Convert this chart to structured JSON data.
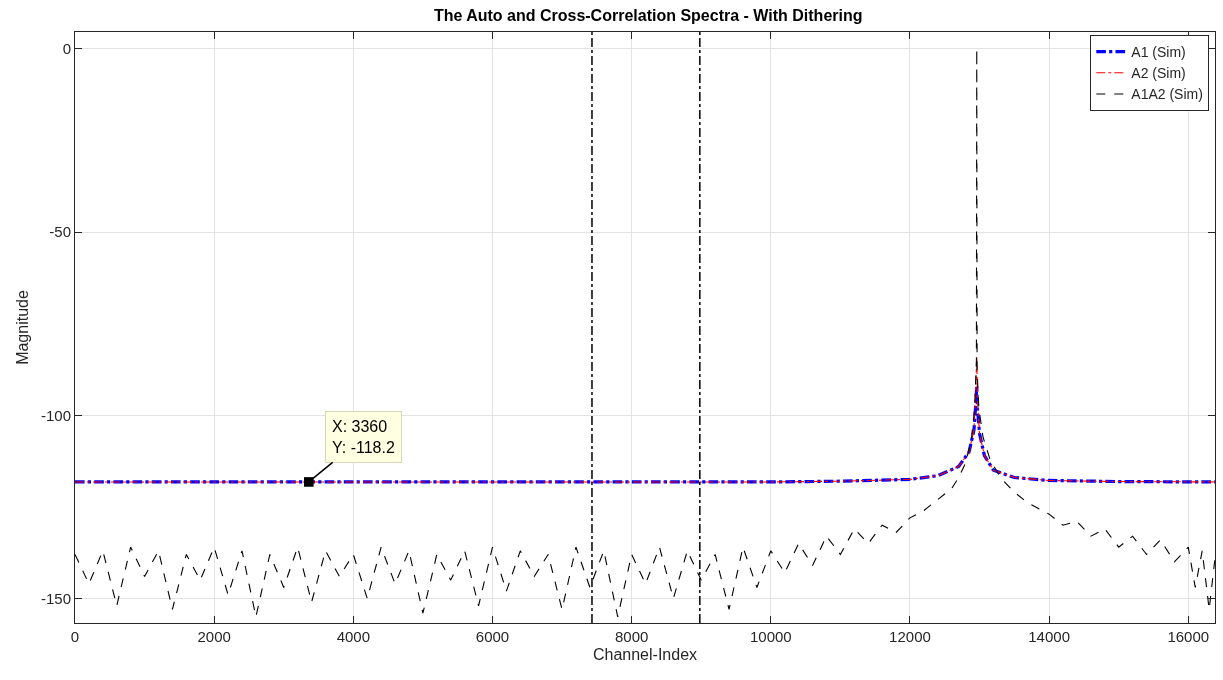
{
  "chart_data": {
    "type": "line",
    "title": "The Auto and Cross-Correlation Spectra - With Dithering",
    "xlabel": "Channel-Index",
    "ylabel": "Magnitude",
    "xlim": [
      0,
      16384
    ],
    "xticks": [
      0,
      2000,
      4000,
      6000,
      8000,
      10000,
      12000,
      14000,
      16000
    ],
    "ylim": [
      -156.7,
      4.6
    ],
    "yticks": [
      -150,
      -100,
      -50,
      0
    ],
    "grid": true,
    "legend": "top right",
    "marker": "none",
    "series": [
      {
        "name": "A1 (Sim)",
        "color": "#0000ff",
        "line_style": "dashdot",
        "x": [
          0,
          4000,
          8000,
          10000,
          11000,
          12000,
          12400,
          12700,
          12850,
          12920,
          12950,
          12960,
          12970,
          13000,
          13070,
          13200,
          13500,
          14000,
          15000,
          16384
        ],
        "values": [
          -118.2,
          -118.2,
          -118.2,
          -118.2,
          -118,
          -117.5,
          -116.5,
          -114,
          -110,
          -104,
          -96,
          -92,
          -98,
          -105,
          -111,
          -115,
          -117,
          -117.8,
          -118.1,
          -118.2
        ]
      },
      {
        "name": "A2 (Sim)",
        "color": "#ff0000",
        "line_style": "dashdot",
        "x": [
          0,
          4000,
          8000,
          10000,
          11000,
          12000,
          12400,
          12700,
          12850,
          12920,
          12950,
          12960,
          12970,
          13000,
          13070,
          13200,
          13500,
          14000,
          15000,
          16384
        ],
        "values": [
          -118.2,
          -118.2,
          -118.2,
          -118.2,
          -118,
          -117.5,
          -116.5,
          -114,
          -110,
          -104,
          -90,
          -84,
          -96,
          -105,
          -111,
          -115,
          -117,
          -117.8,
          -118.1,
          -118.2
        ]
      },
      {
        "name": "A1A2 (Sim)",
        "color": "#000000",
        "line_style": "dashed",
        "x": [
          0,
          200,
          400,
          600,
          800,
          1000,
          1200,
          1400,
          1600,
          1800,
          2000,
          2200,
          2400,
          2600,
          2800,
          3000,
          3200,
          3400,
          3600,
          3800,
          4000,
          4200,
          4400,
          4600,
          4800,
          5000,
          5200,
          5400,
          5600,
          5800,
          6000,
          6200,
          6400,
          6600,
          6800,
          7000,
          7200,
          7400,
          7600,
          7800,
          8000,
          8200,
          8400,
          8600,
          8800,
          9000,
          9200,
          9400,
          9600,
          9800,
          10000,
          10200,
          10400,
          10600,
          10800,
          11000,
          11200,
          11400,
          11600,
          11800,
          12000,
          12200,
          12400,
          12600,
          12700,
          12800,
          12880,
          12930,
          12955,
          12960,
          12965,
          12990,
          13050,
          13150,
          13300,
          13500,
          13700,
          14000,
          14200,
          14400,
          14600,
          14800,
          15000,
          15200,
          15400,
          15600,
          15800,
          16000,
          16100,
          16200,
          16300,
          16384
        ],
        "values": [
          -138,
          -146,
          -137,
          -152,
          -136,
          -144,
          -137,
          -153,
          -138,
          -145,
          -136,
          -149,
          -137,
          -155,
          -138,
          -147,
          -136,
          -151,
          -137,
          -144,
          -138,
          -150,
          -136,
          -146,
          -137,
          -154,
          -138,
          -145,
          -137,
          -152,
          -136,
          -148,
          -137,
          -144,
          -138,
          -153,
          -136,
          -147,
          -137,
          -155,
          -138,
          -146,
          -136,
          -150,
          -137,
          -145,
          -138,
          -153,
          -136,
          -147,
          -137,
          -143,
          -135,
          -141,
          -133,
          -138,
          -131,
          -135,
          -130,
          -132,
          -128,
          -126,
          -123,
          -120,
          -117,
          -113,
          -107,
          -98,
          -85,
          0,
          -88,
          -98,
          -106,
          -112,
          -117,
          -121,
          -124,
          -127,
          -130,
          -129,
          -133,
          -131,
          -136,
          -133,
          -138,
          -134,
          -140,
          -136,
          -147,
          -137,
          -153,
          -139
        ]
      }
    ],
    "ref_lines": [
      {
        "axis": "x",
        "value": 7430,
        "color": "#000000",
        "line_style": "dashdot"
      },
      {
        "axis": "x",
        "value": 8980,
        "color": "#000000",
        "line_style": "dashdot"
      }
    ],
    "annotations": [
      {
        "text": "X: 3360\nY: -118.2",
        "x": 3360,
        "y": -118.2
      }
    ]
  }
}
